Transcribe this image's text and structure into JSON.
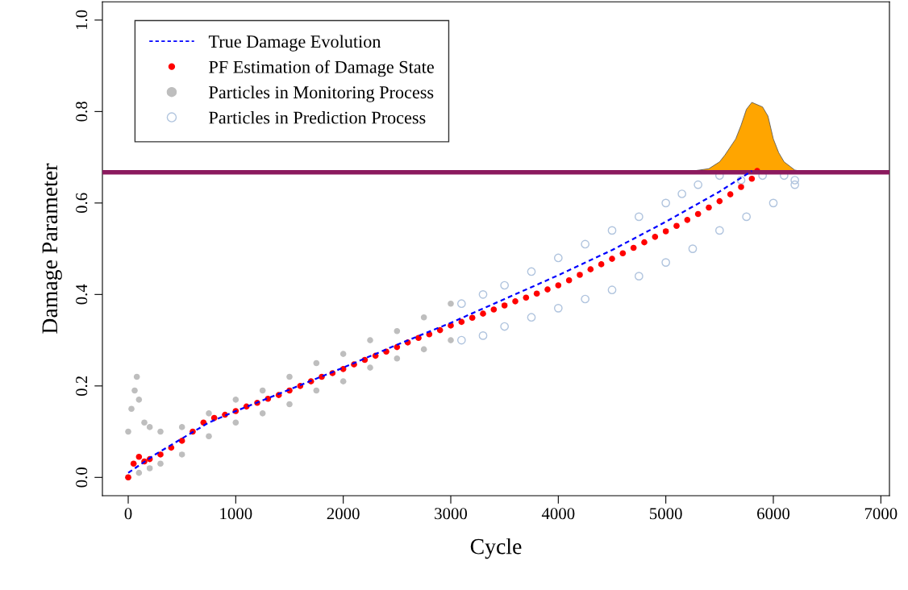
{
  "chart_data": {
    "type": "scatter",
    "xlabel": "Cycle",
    "ylabel": "Damage Parameter",
    "xlim": [
      -240,
      7080
    ],
    "ylim": [
      -0.04,
      1.04
    ],
    "xticks": [
      0,
      1000,
      2000,
      3000,
      4000,
      5000,
      6000,
      7000
    ],
    "yticks": [
      {
        "value": 0,
        "label": "0.0"
      },
      {
        "value": 0.2,
        "label": "0.2"
      },
      {
        "value": 0.4,
        "label": "0.4"
      },
      {
        "value": 0.6,
        "label": "0.6"
      },
      {
        "value": 0.8,
        "label": "0.8"
      },
      {
        "value": 1,
        "label": "1.0"
      }
    ],
    "grid": false,
    "legend": "top left",
    "ref_lines": [
      {
        "axis": "y",
        "value": 0.667,
        "color": "#8b1a5e",
        "line_style": "solid"
      }
    ],
    "series": [
      {
        "name": "Particles in Monitoring Process",
        "marker": "circle",
        "color": "#bebebe",
        "x": [
          0,
          30,
          60,
          80,
          100,
          150,
          200,
          300,
          500,
          750,
          1000,
          1250,
          1500,
          1750,
          2000,
          2250,
          2500,
          2750,
          3000,
          0,
          100,
          200,
          300,
          500,
          750,
          1000,
          1250,
          1500,
          1750,
          2000,
          2250,
          2500,
          2750,
          3000
        ],
        "values": [
          0.1,
          0.15,
          0.19,
          0.22,
          0.17,
          0.12,
          0.11,
          0.1,
          0.11,
          0.14,
          0.17,
          0.19,
          0.22,
          0.25,
          0.27,
          0.3,
          0.32,
          0.35,
          0.38,
          0.0,
          0.01,
          0.02,
          0.03,
          0.05,
          0.09,
          0.12,
          0.14,
          0.16,
          0.19,
          0.21,
          0.24,
          0.26,
          0.28,
          0.3
        ]
      },
      {
        "name": "Particles in Prediction Process",
        "marker": "circle",
        "color": "#b0c4de",
        "x": [
          3100,
          3300,
          3500,
          3750,
          4000,
          4250,
          4500,
          4750,
          5000,
          5150,
          5300,
          5500,
          5700,
          5900,
          6100,
          6200,
          3100,
          3300,
          3500,
          3750,
          4000,
          4250,
          4500,
          4750,
          5000,
          5250,
          5500,
          5750,
          6000,
          6200
        ],
        "values": [
          0.38,
          0.4,
          0.42,
          0.45,
          0.48,
          0.51,
          0.54,
          0.57,
          0.6,
          0.62,
          0.64,
          0.66,
          0.65,
          0.66,
          0.66,
          0.65,
          0.3,
          0.31,
          0.33,
          0.35,
          0.37,
          0.39,
          0.41,
          0.44,
          0.47,
          0.5,
          0.54,
          0.57,
          0.6,
          0.64
        ]
      },
      {
        "name": "True Damage Evolution",
        "type": "line",
        "line_style": "dashed",
        "marker": "none",
        "color": "#0000ff",
        "x": [
          0,
          250,
          500,
          750,
          1000,
          1500,
          2000,
          2500,
          3000,
          3500,
          4000,
          4500,
          5000,
          5500,
          5800
        ],
        "values": [
          0.01,
          0.05,
          0.085,
          0.12,
          0.145,
          0.192,
          0.24,
          0.29,
          0.338,
          0.39,
          0.442,
          0.497,
          0.559,
          0.625,
          0.67
        ]
      },
      {
        "name": "PF Estimation of Damage State",
        "marker": "circle",
        "color": "#ff0000",
        "x": [
          0,
          50,
          100,
          150,
          200,
          300,
          400,
          500,
          600,
          700,
          800,
          900,
          1000,
          1100,
          1200,
          1300,
          1400,
          1500,
          1600,
          1700,
          1800,
          1900,
          2000,
          2100,
          2200,
          2300,
          2400,
          2500,
          2600,
          2700,
          2800,
          2900,
          3000,
          3100,
          3200,
          3300,
          3400,
          3500,
          3600,
          3700,
          3800,
          3900,
          4000,
          4100,
          4200,
          4300,
          4400,
          4500,
          4600,
          4700,
          4800,
          4900,
          5000,
          5100,
          5200,
          5300,
          5400,
          5500,
          5600,
          5700,
          5800,
          5850
        ],
        "values": [
          0.0,
          0.03,
          0.045,
          0.035,
          0.04,
          0.05,
          0.065,
          0.08,
          0.1,
          0.12,
          0.13,
          0.137,
          0.145,
          0.155,
          0.163,
          0.172,
          0.18,
          0.19,
          0.2,
          0.21,
          0.22,
          0.228,
          0.237,
          0.247,
          0.257,
          0.266,
          0.275,
          0.285,
          0.295,
          0.305,
          0.313,
          0.322,
          0.332,
          0.34,
          0.349,
          0.358,
          0.367,
          0.376,
          0.385,
          0.393,
          0.402,
          0.411,
          0.42,
          0.431,
          0.443,
          0.455,
          0.466,
          0.478,
          0.49,
          0.502,
          0.514,
          0.526,
          0.538,
          0.55,
          0.563,
          0.576,
          0.59,
          0.604,
          0.619,
          0.635,
          0.653,
          0.67
        ]
      },
      {
        "type": "area",
        "color": "#ffa500",
        "x": [
          5250,
          5400,
          5500,
          5550,
          5650,
          5700,
          5750,
          5800,
          5850,
          5900,
          5950,
          6000,
          6050,
          6100,
          6200,
          6250
        ],
        "values": [
          0.67,
          0.675,
          0.69,
          0.705,
          0.74,
          0.77,
          0.805,
          0.82,
          0.815,
          0.81,
          0.79,
          0.74,
          0.71,
          0.69,
          0.672,
          0.67
        ]
      }
    ]
  }
}
